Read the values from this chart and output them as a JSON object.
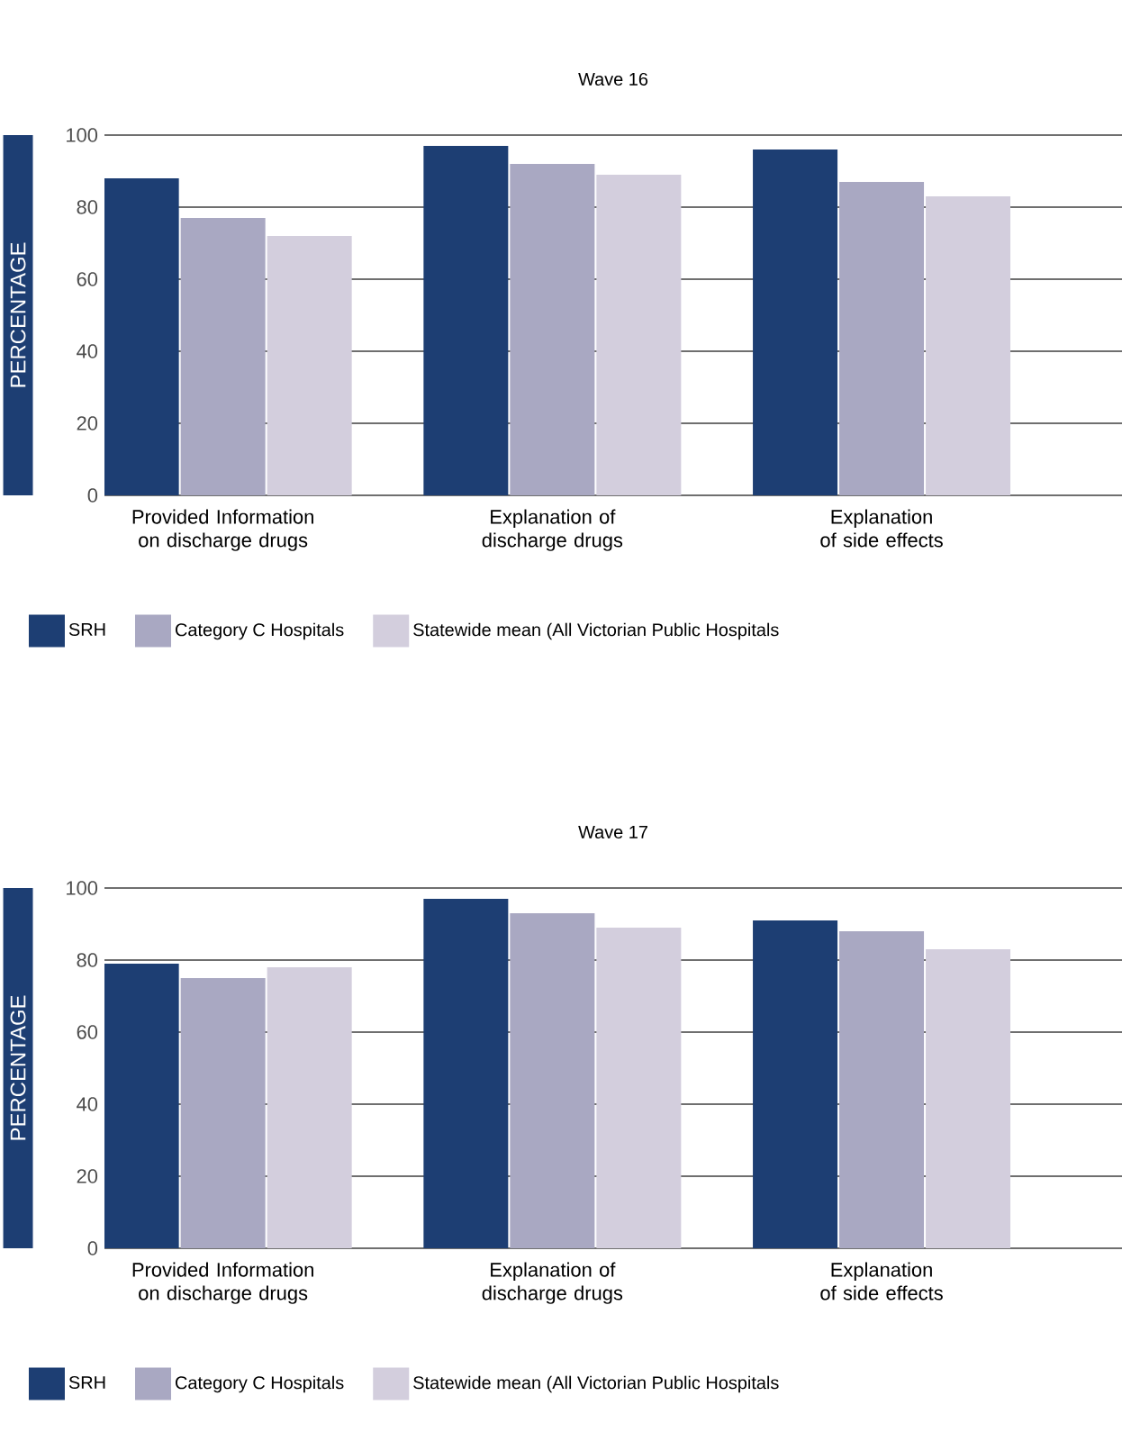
{
  "chart_data": [
    {
      "type": "bar",
      "title": "Wave 16",
      "ylabel": "PERCENTAGE",
      "categories": [
        "Provided Information on discharge drugs",
        "Explanation of discharge drugs",
        "Explanation of side effects"
      ],
      "series": [
        {
          "name": "SRH",
          "color": "#1d3e73",
          "values": [
            88,
            97,
            96
          ]
        },
        {
          "name": "Category C Hospitals",
          "color": "#a9a8c2",
          "values": [
            77,
            92,
            87
          ]
        },
        {
          "name": "Statewide mean (All Victorian Public Hospitals",
          "color": "#d3cedd",
          "values": [
            72,
            89,
            83
          ]
        }
      ],
      "ylim": [
        0,
        100
      ],
      "yticks": [
        0,
        20,
        40,
        60,
        80,
        100
      ],
      "grid": "y",
      "legend": "bottom"
    },
    {
      "type": "bar",
      "title": "Wave 17",
      "ylabel": "PERCENTAGE",
      "categories": [
        "Provided Information on discharge drugs",
        "Explanation of discharge drugs",
        "Explanation of side effects"
      ],
      "series": [
        {
          "name": "SRH",
          "color": "#1d3e73",
          "values": [
            79,
            97,
            91
          ]
        },
        {
          "name": "Category C Hospitals",
          "color": "#a9a8c2",
          "values": [
            75,
            93,
            88
          ]
        },
        {
          "name": "Statewide mean (All Victorian Public Hospitals",
          "color": "#d3cedd",
          "values": [
            78,
            89,
            83
          ]
        }
      ],
      "ylim": [
        0,
        100
      ],
      "yticks": [
        0,
        20,
        40,
        60,
        80,
        100
      ],
      "grid": "y",
      "legend": "bottom"
    }
  ]
}
